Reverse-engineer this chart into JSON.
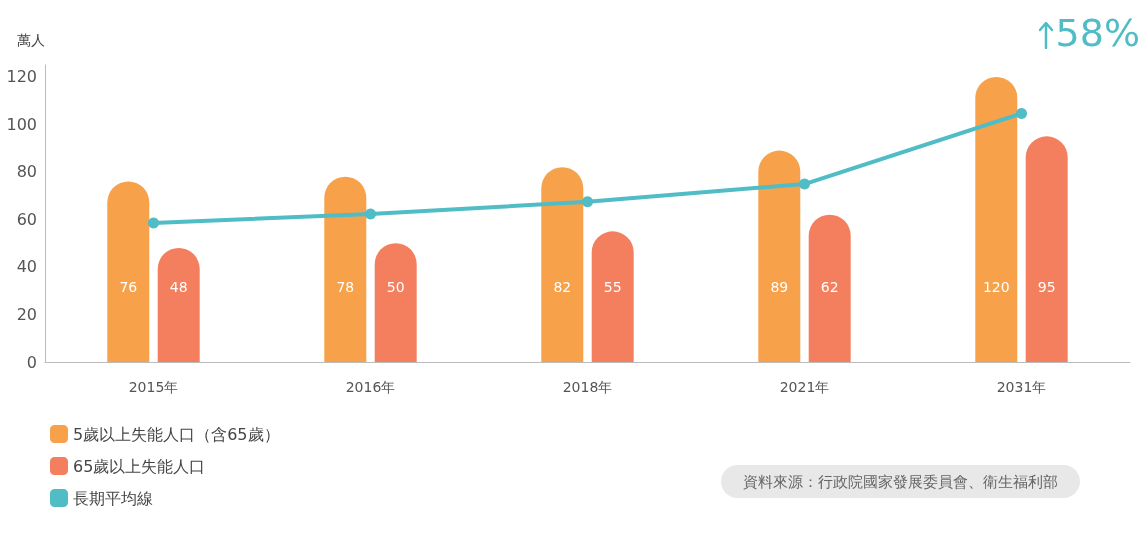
{
  "chart_data": {
    "type": "bar",
    "ylabel": "萬人",
    "categories": [
      "2015年",
      "2016年",
      "2018年",
      "2021年",
      "2031年"
    ],
    "series": [
      {
        "name": "5歲以上失能人口（含65歲）",
        "color": "#f7a24a",
        "values": [
          76,
          78,
          82,
          89,
          120
        ],
        "value_labels": [
          "76",
          "78",
          "82",
          "89",
          "120"
        ]
      },
      {
        "name": "65歲以上失能人口",
        "color": "#f37f5f",
        "values": [
          48,
          50,
          55,
          62,
          95
        ],
        "value_labels": [
          "48",
          "50",
          "55",
          "62",
          "95"
        ]
      },
      {
        "name": "長期平均線",
        "type": "line",
        "color": "#4fbcc6",
        "values": [
          58.5,
          62.3,
          67.4,
          74.9,
          104.6
        ],
        "marker": "circle"
      }
    ],
    "ylim": [
      0,
      125
    ],
    "yticks": [
      0,
      20,
      40,
      60,
      80,
      100,
      120
    ],
    "grid": false,
    "legend": "bottom left",
    "annotations": [
      "58%",
      "資料來源：行政院國家發展委員會、衛生福利部"
    ]
  }
}
